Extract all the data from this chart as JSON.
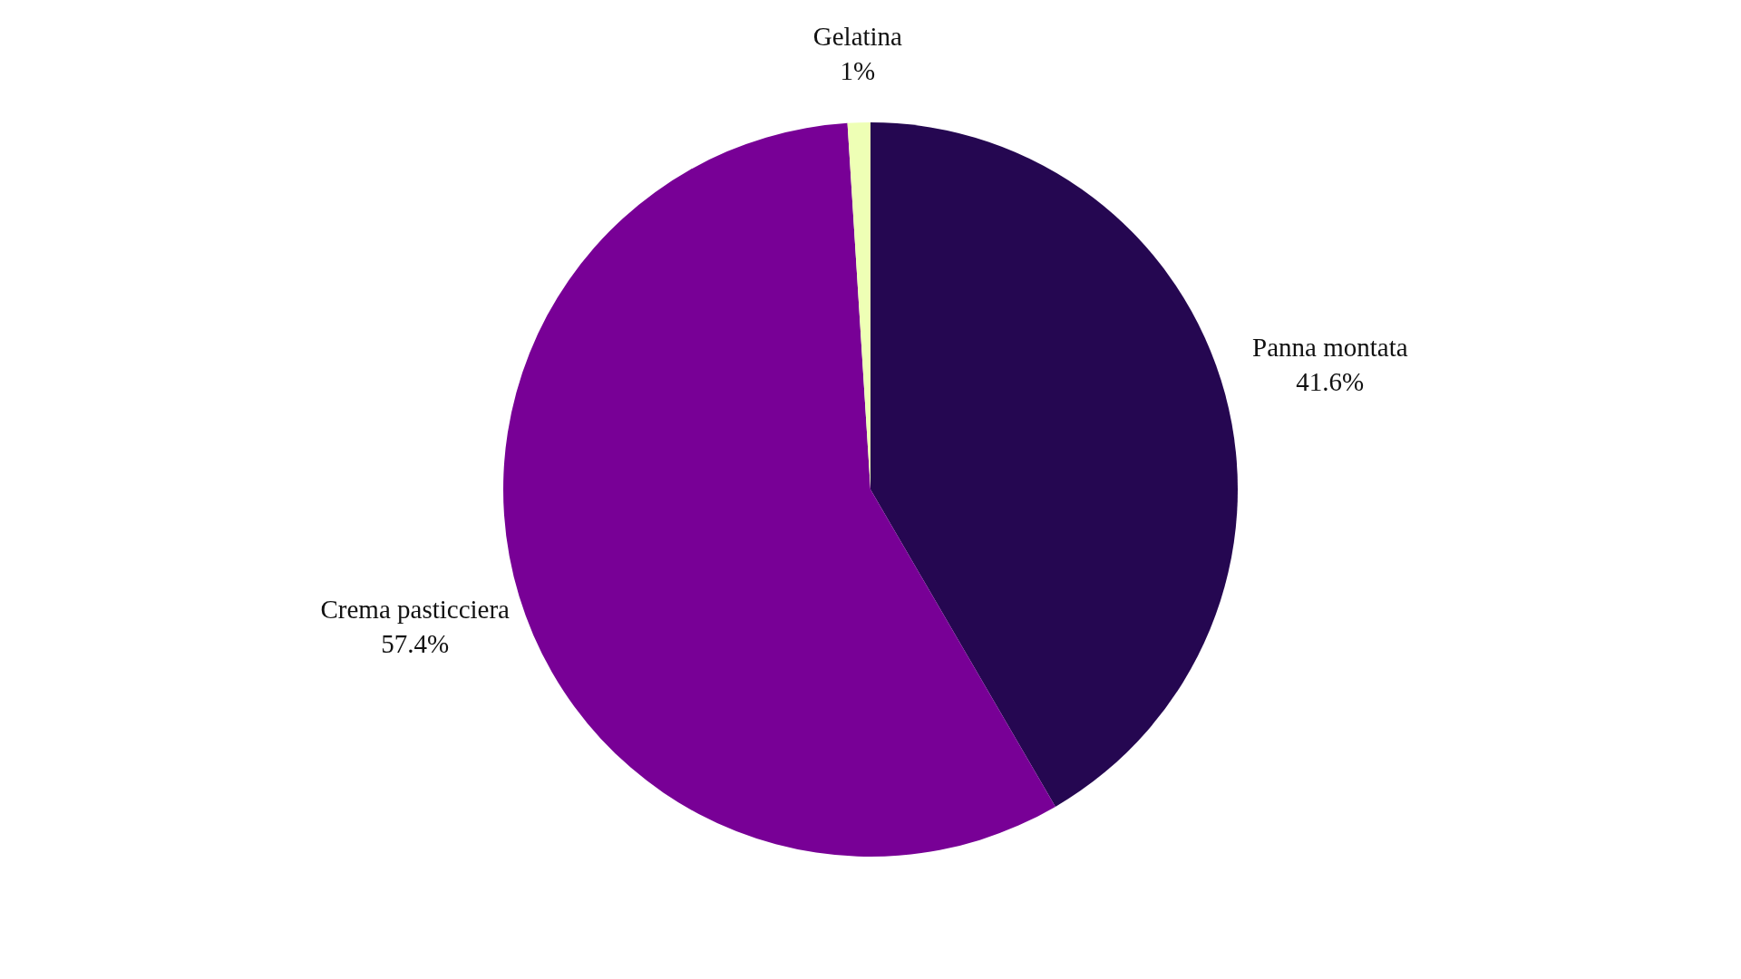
{
  "chart_data": {
    "type": "pie",
    "categories": [
      "Panna montata",
      "Crema pasticciera",
      "Gelatina"
    ],
    "values": [
      41.6,
      57.4,
      1
    ],
    "colors": [
      "#250751",
      "#780096",
      "#eeffb5"
    ],
    "value_labels": [
      "41.6%",
      "57.4%",
      "1%"
    ],
    "legend": false
  }
}
